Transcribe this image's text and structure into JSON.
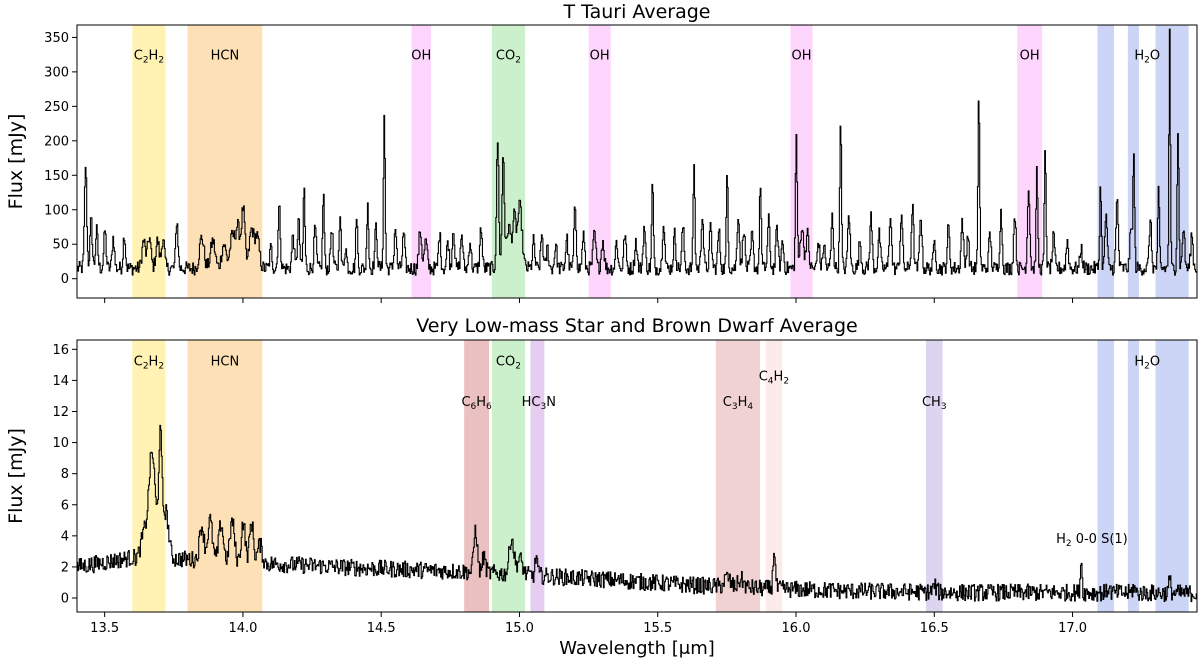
{
  "chart_data": [
    {
      "type": "line",
      "title": "T Tauri Average",
      "ylabel": "Flux [mJy]",
      "xlabel": "",
      "xlim": [
        13.4,
        17.45
      ],
      "ylim": [
        -28,
        368
      ],
      "yticks": [
        0,
        50,
        100,
        150,
        200,
        250,
        300,
        350
      ],
      "xticks": [
        13.5,
        14.0,
        14.5,
        15.0,
        15.5,
        16.0,
        16.5,
        17.0
      ],
      "show_xtick_labels": false,
      "baseline": 15,
      "noise": 10,
      "bands": [
        {
          "x0": 13.6,
          "x1": 13.72,
          "color": "#fff2b3"
        },
        {
          "x0": 13.8,
          "x1": 14.07,
          "color": "#fde0b5"
        },
        {
          "x0": 14.61,
          "x1": 14.68,
          "color": "#fdd5fd"
        },
        {
          "x0": 14.9,
          "x1": 15.02,
          "color": "#ccf0cc"
        },
        {
          "x0": 15.25,
          "x1": 15.33,
          "color": "#fdd5fd"
        },
        {
          "x0": 15.98,
          "x1": 16.06,
          "color": "#fdd5fd"
        },
        {
          "x0": 16.8,
          "x1": 16.89,
          "color": "#fdd5fd"
        },
        {
          "x0": 17.09,
          "x1": 17.15,
          "color": "#ccd5f5"
        },
        {
          "x0": 17.2,
          "x1": 17.24,
          "color": "#ccd5f5"
        },
        {
          "x0": 17.3,
          "x1": 17.42,
          "color": "#ccd5f5"
        }
      ],
      "labels": [
        {
          "x": 13.66,
          "y": 318,
          "base": "C",
          "parts": [
            [
              "C",
              ""
            ],
            [
              "2",
              "sub"
            ],
            [
              "H",
              ""
            ],
            [
              "2",
              "sub"
            ]
          ]
        },
        {
          "x": 13.935,
          "y": 318,
          "parts": [
            [
              "HCN",
              ""
            ]
          ]
        },
        {
          "x": 14.645,
          "y": 318,
          "parts": [
            [
              "OH",
              ""
            ]
          ]
        },
        {
          "x": 14.96,
          "y": 318,
          "parts": [
            [
              "CO",
              ""
            ],
            [
              "2",
              "sub"
            ]
          ]
        },
        {
          "x": 15.29,
          "y": 318,
          "parts": [
            [
              "OH",
              ""
            ]
          ]
        },
        {
          "x": 16.02,
          "y": 318,
          "parts": [
            [
              "OH",
              ""
            ]
          ]
        },
        {
          "x": 16.845,
          "y": 318,
          "parts": [
            [
              "OH",
              ""
            ]
          ]
        },
        {
          "x": 17.27,
          "y": 318,
          "parts": [
            [
              "H",
              ""
            ],
            [
              "2",
              "sub"
            ],
            [
              "O",
              ""
            ]
          ]
        }
      ],
      "peaks": [
        [
          13.43,
          150,
          0.004
        ],
        [
          13.45,
          70,
          0.004
        ],
        [
          13.47,
          55,
          0.004
        ],
        [
          13.5,
          55,
          0.004
        ],
        [
          13.53,
          45,
          0.004
        ],
        [
          13.57,
          50,
          0.004
        ],
        [
          13.64,
          40,
          0.006
        ],
        [
          13.66,
          45,
          0.006
        ],
        [
          13.69,
          40,
          0.006
        ],
        [
          13.71,
          45,
          0.005
        ],
        [
          13.76,
          70,
          0.004
        ],
        [
          13.85,
          45,
          0.008
        ],
        [
          13.89,
          40,
          0.008
        ],
        [
          13.93,
          35,
          0.008
        ],
        [
          13.96,
          45,
          0.008
        ],
        [
          13.98,
          60,
          0.008
        ],
        [
          14.0,
          85,
          0.006
        ],
        [
          14.03,
          55,
          0.008
        ],
        [
          14.05,
          45,
          0.008
        ],
        [
          14.1,
          30,
          0.004
        ],
        [
          14.13,
          90,
          0.004
        ],
        [
          14.18,
          50,
          0.004
        ],
        [
          14.2,
          70,
          0.004
        ],
        [
          14.22,
          120,
          0.003
        ],
        [
          14.26,
          60,
          0.004
        ],
        [
          14.29,
          110,
          0.003
        ],
        [
          14.32,
          60,
          0.004
        ],
        [
          14.35,
          85,
          0.003
        ],
        [
          14.37,
          30,
          0.004
        ],
        [
          14.41,
          80,
          0.003
        ],
        [
          14.45,
          100,
          0.003
        ],
        [
          14.48,
          60,
          0.004
        ],
        [
          14.51,
          220,
          0.003
        ],
        [
          14.55,
          60,
          0.004
        ],
        [
          14.58,
          50,
          0.004
        ],
        [
          14.64,
          55,
          0.005
        ],
        [
          14.66,
          40,
          0.005
        ],
        [
          14.71,
          50,
          0.004
        ],
        [
          14.74,
          40,
          0.004
        ],
        [
          14.76,
          60,
          0.004
        ],
        [
          14.79,
          50,
          0.004
        ],
        [
          14.82,
          40,
          0.004
        ],
        [
          14.86,
          60,
          0.004
        ],
        [
          14.92,
          185,
          0.004
        ],
        [
          14.94,
          165,
          0.004
        ],
        [
          14.96,
          60,
          0.008
        ],
        [
          14.98,
          70,
          0.006
        ],
        [
          15.0,
          90,
          0.008
        ],
        [
          15.05,
          40,
          0.004
        ],
        [
          15.08,
          50,
          0.004
        ],
        [
          15.1,
          30,
          0.004
        ],
        [
          15.13,
          35,
          0.004
        ],
        [
          15.17,
          45,
          0.004
        ],
        [
          15.2,
          90,
          0.004
        ],
        [
          15.23,
          50,
          0.004
        ],
        [
          15.27,
          50,
          0.005
        ],
        [
          15.3,
          40,
          0.005
        ],
        [
          15.35,
          40,
          0.004
        ],
        [
          15.38,
          50,
          0.004
        ],
        [
          15.42,
          40,
          0.004
        ],
        [
          15.45,
          60,
          0.004
        ],
        [
          15.48,
          125,
          0.003
        ],
        [
          15.52,
          70,
          0.004
        ],
        [
          15.56,
          50,
          0.004
        ],
        [
          15.59,
          60,
          0.004
        ],
        [
          15.63,
          155,
          0.003
        ],
        [
          15.66,
          80,
          0.004
        ],
        [
          15.69,
          60,
          0.004
        ],
        [
          15.72,
          55,
          0.004
        ],
        [
          15.75,
          140,
          0.003
        ],
        [
          15.79,
          80,
          0.004
        ],
        [
          15.81,
          60,
          0.004
        ],
        [
          15.84,
          50,
          0.004
        ],
        [
          15.87,
          125,
          0.003
        ],
        [
          15.9,
          70,
          0.004
        ],
        [
          15.93,
          60,
          0.004
        ],
        [
          15.95,
          40,
          0.004
        ],
        [
          16.0,
          195,
          0.003
        ],
        [
          16.02,
          60,
          0.006
        ],
        [
          16.04,
          50,
          0.005
        ],
        [
          16.08,
          40,
          0.004
        ],
        [
          16.1,
          35,
          0.004
        ],
        [
          16.13,
          75,
          0.004
        ],
        [
          16.16,
          220,
          0.003
        ],
        [
          16.19,
          80,
          0.004
        ],
        [
          16.23,
          40,
          0.004
        ],
        [
          16.27,
          75,
          0.004
        ],
        [
          16.3,
          50,
          0.004
        ],
        [
          16.34,
          80,
          0.004
        ],
        [
          16.38,
          80,
          0.004
        ],
        [
          16.42,
          90,
          0.004
        ],
        [
          16.45,
          80,
          0.004
        ],
        [
          16.5,
          40,
          0.004
        ],
        [
          16.55,
          60,
          0.004
        ],
        [
          16.6,
          70,
          0.004
        ],
        [
          16.62,
          50,
          0.004
        ],
        [
          16.66,
          250,
          0.003
        ],
        [
          16.7,
          50,
          0.004
        ],
        [
          16.74,
          80,
          0.004
        ],
        [
          16.79,
          80,
          0.004
        ],
        [
          16.84,
          120,
          0.004
        ],
        [
          16.87,
          140,
          0.003
        ],
        [
          16.9,
          170,
          0.003
        ],
        [
          16.93,
          45,
          0.004
        ],
        [
          16.98,
          40,
          0.004
        ],
        [
          17.03,
          30,
          0.004
        ],
        [
          17.1,
          120,
          0.003
        ],
        [
          17.12,
          80,
          0.004
        ],
        [
          17.16,
          100,
          0.004
        ],
        [
          17.21,
          55,
          0.004
        ],
        [
          17.22,
          160,
          0.003
        ],
        [
          17.28,
          70,
          0.004
        ],
        [
          17.31,
          110,
          0.003
        ],
        [
          17.35,
          340,
          0.0025
        ],
        [
          17.38,
          200,
          0.003
        ],
        [
          17.4,
          60,
          0.004
        ],
        [
          17.43,
          50,
          0.004
        ]
      ]
    },
    {
      "type": "line",
      "title": "Very Low-mass Star and Brown Dwarf Average",
      "ylabel": "Flux [mJy]",
      "xlabel": "Wavelength [μm]",
      "xlim": [
        13.4,
        17.45
      ],
      "ylim": [
        -0.9,
        16.6
      ],
      "yticks": [
        0,
        2,
        4,
        6,
        8,
        10,
        12,
        14,
        16
      ],
      "xticks": [
        13.5,
        14.0,
        14.5,
        15.0,
        15.5,
        16.0,
        16.5,
        17.0
      ],
      "show_xtick_labels": true,
      "noise": 0.55,
      "continuum": [
        [
          13.4,
          2.0
        ],
        [
          13.6,
          2.6
        ],
        [
          13.8,
          2.5
        ],
        [
          14.0,
          2.3
        ],
        [
          14.4,
          1.95
        ],
        [
          14.8,
          1.7
        ],
        [
          15.0,
          1.5
        ],
        [
          15.3,
          1.2
        ],
        [
          15.6,
          0.85
        ],
        [
          15.9,
          0.6
        ],
        [
          16.2,
          0.45
        ],
        [
          16.6,
          0.35
        ],
        [
          17.0,
          0.35
        ],
        [
          17.45,
          0.3
        ]
      ],
      "bands": [
        {
          "x0": 13.6,
          "x1": 13.72,
          "color": "#fff2b3"
        },
        {
          "x0": 13.8,
          "x1": 14.07,
          "color": "#fde0b5"
        },
        {
          "x0": 14.8,
          "x1": 14.89,
          "color": "#ebc0c0"
        },
        {
          "x0": 14.9,
          "x1": 15.02,
          "color": "#ccf0cc"
        },
        {
          "x0": 15.04,
          "x1": 15.09,
          "color": "#e5ccf0"
        },
        {
          "x0": 15.71,
          "x1": 15.87,
          "color": "#f0d2d2"
        },
        {
          "x0": 15.89,
          "x1": 15.95,
          "color": "#fdeaea"
        },
        {
          "x0": 16.47,
          "x1": 16.53,
          "color": "#dcd5f0"
        },
        {
          "x0": 17.09,
          "x1": 17.15,
          "color": "#ccd5f5"
        },
        {
          "x0": 17.2,
          "x1": 17.24,
          "color": "#ccd5f5"
        },
        {
          "x0": 17.3,
          "x1": 17.42,
          "color": "#ccd5f5"
        }
      ],
      "labels": [
        {
          "x": 13.66,
          "y": 14.95,
          "parts": [
            [
              "C",
              ""
            ],
            [
              "2",
              "sub"
            ],
            [
              "H",
              ""
            ],
            [
              "2",
              "sub"
            ]
          ]
        },
        {
          "x": 13.935,
          "y": 14.95,
          "parts": [
            [
              "HCN",
              ""
            ]
          ]
        },
        {
          "x": 14.845,
          "y": 12.35,
          "parts": [
            [
              "C",
              ""
            ],
            [
              "6",
              "sub"
            ],
            [
              "H",
              ""
            ],
            [
              "6",
              "sub"
            ]
          ]
        },
        {
          "x": 14.96,
          "y": 14.95,
          "parts": [
            [
              "CO",
              ""
            ],
            [
              "2",
              "sub"
            ]
          ]
        },
        {
          "x": 15.07,
          "y": 12.35,
          "parts": [
            [
              "HC",
              ""
            ],
            [
              "3",
              "sub"
            ],
            [
              "N",
              ""
            ]
          ]
        },
        {
          "x": 15.79,
          "y": 12.35,
          "parts": [
            [
              "C",
              ""
            ],
            [
              "3",
              "sub"
            ],
            [
              "H",
              ""
            ],
            [
              "4",
              "sub"
            ]
          ]
        },
        {
          "x": 15.92,
          "y": 14.0,
          "parts": [
            [
              "C",
              ""
            ],
            [
              "4",
              "sub"
            ],
            [
              "H",
              ""
            ],
            [
              "2",
              "sub"
            ]
          ]
        },
        {
          "x": 16.5,
          "y": 12.35,
          "parts": [
            [
              "CH",
              ""
            ],
            [
              "3",
              "sub"
            ]
          ]
        },
        {
          "x": 17.27,
          "y": 14.95,
          "parts": [
            [
              "H",
              ""
            ],
            [
              "2",
              "sub"
            ],
            [
              "O",
              ""
            ]
          ]
        },
        {
          "x": 17.07,
          "y": 3.55,
          "parts": [
            [
              "H",
              ""
            ],
            [
              "2",
              "sub"
            ],
            [
              " 0-0 S(1)",
              ""
            ]
          ]
        }
      ],
      "peaks": [
        [
          13.67,
          6.8,
          0.012
        ],
        [
          13.7,
          7.5,
          0.006
        ],
        [
          13.72,
          3.0,
          0.01
        ],
        [
          13.64,
          1.4,
          0.01
        ],
        [
          13.85,
          2.2,
          0.008
        ],
        [
          13.88,
          2.6,
          0.008
        ],
        [
          13.92,
          2.4,
          0.008
        ],
        [
          13.96,
          2.6,
          0.008
        ],
        [
          14.0,
          2.6,
          0.007
        ],
        [
          14.03,
          2.6,
          0.007
        ],
        [
          14.06,
          1.2,
          0.008
        ],
        [
          14.84,
          2.8,
          0.006
        ],
        [
          14.87,
          1.0,
          0.006
        ],
        [
          14.97,
          2.4,
          0.008
        ],
        [
          15.0,
          1.0,
          0.01
        ],
        [
          15.06,
          1.3,
          0.004
        ],
        [
          15.75,
          0.6,
          0.01
        ],
        [
          15.8,
          0.5,
          0.01
        ],
        [
          15.92,
          2.6,
          0.004
        ],
        [
          16.5,
          0.4,
          0.006
        ],
        [
          17.03,
          2.2,
          0.003
        ],
        [
          17.13,
          0.4,
          0.004
        ],
        [
          17.22,
          0.4,
          0.004
        ],
        [
          17.35,
          0.8,
          0.004
        ]
      ]
    }
  ]
}
